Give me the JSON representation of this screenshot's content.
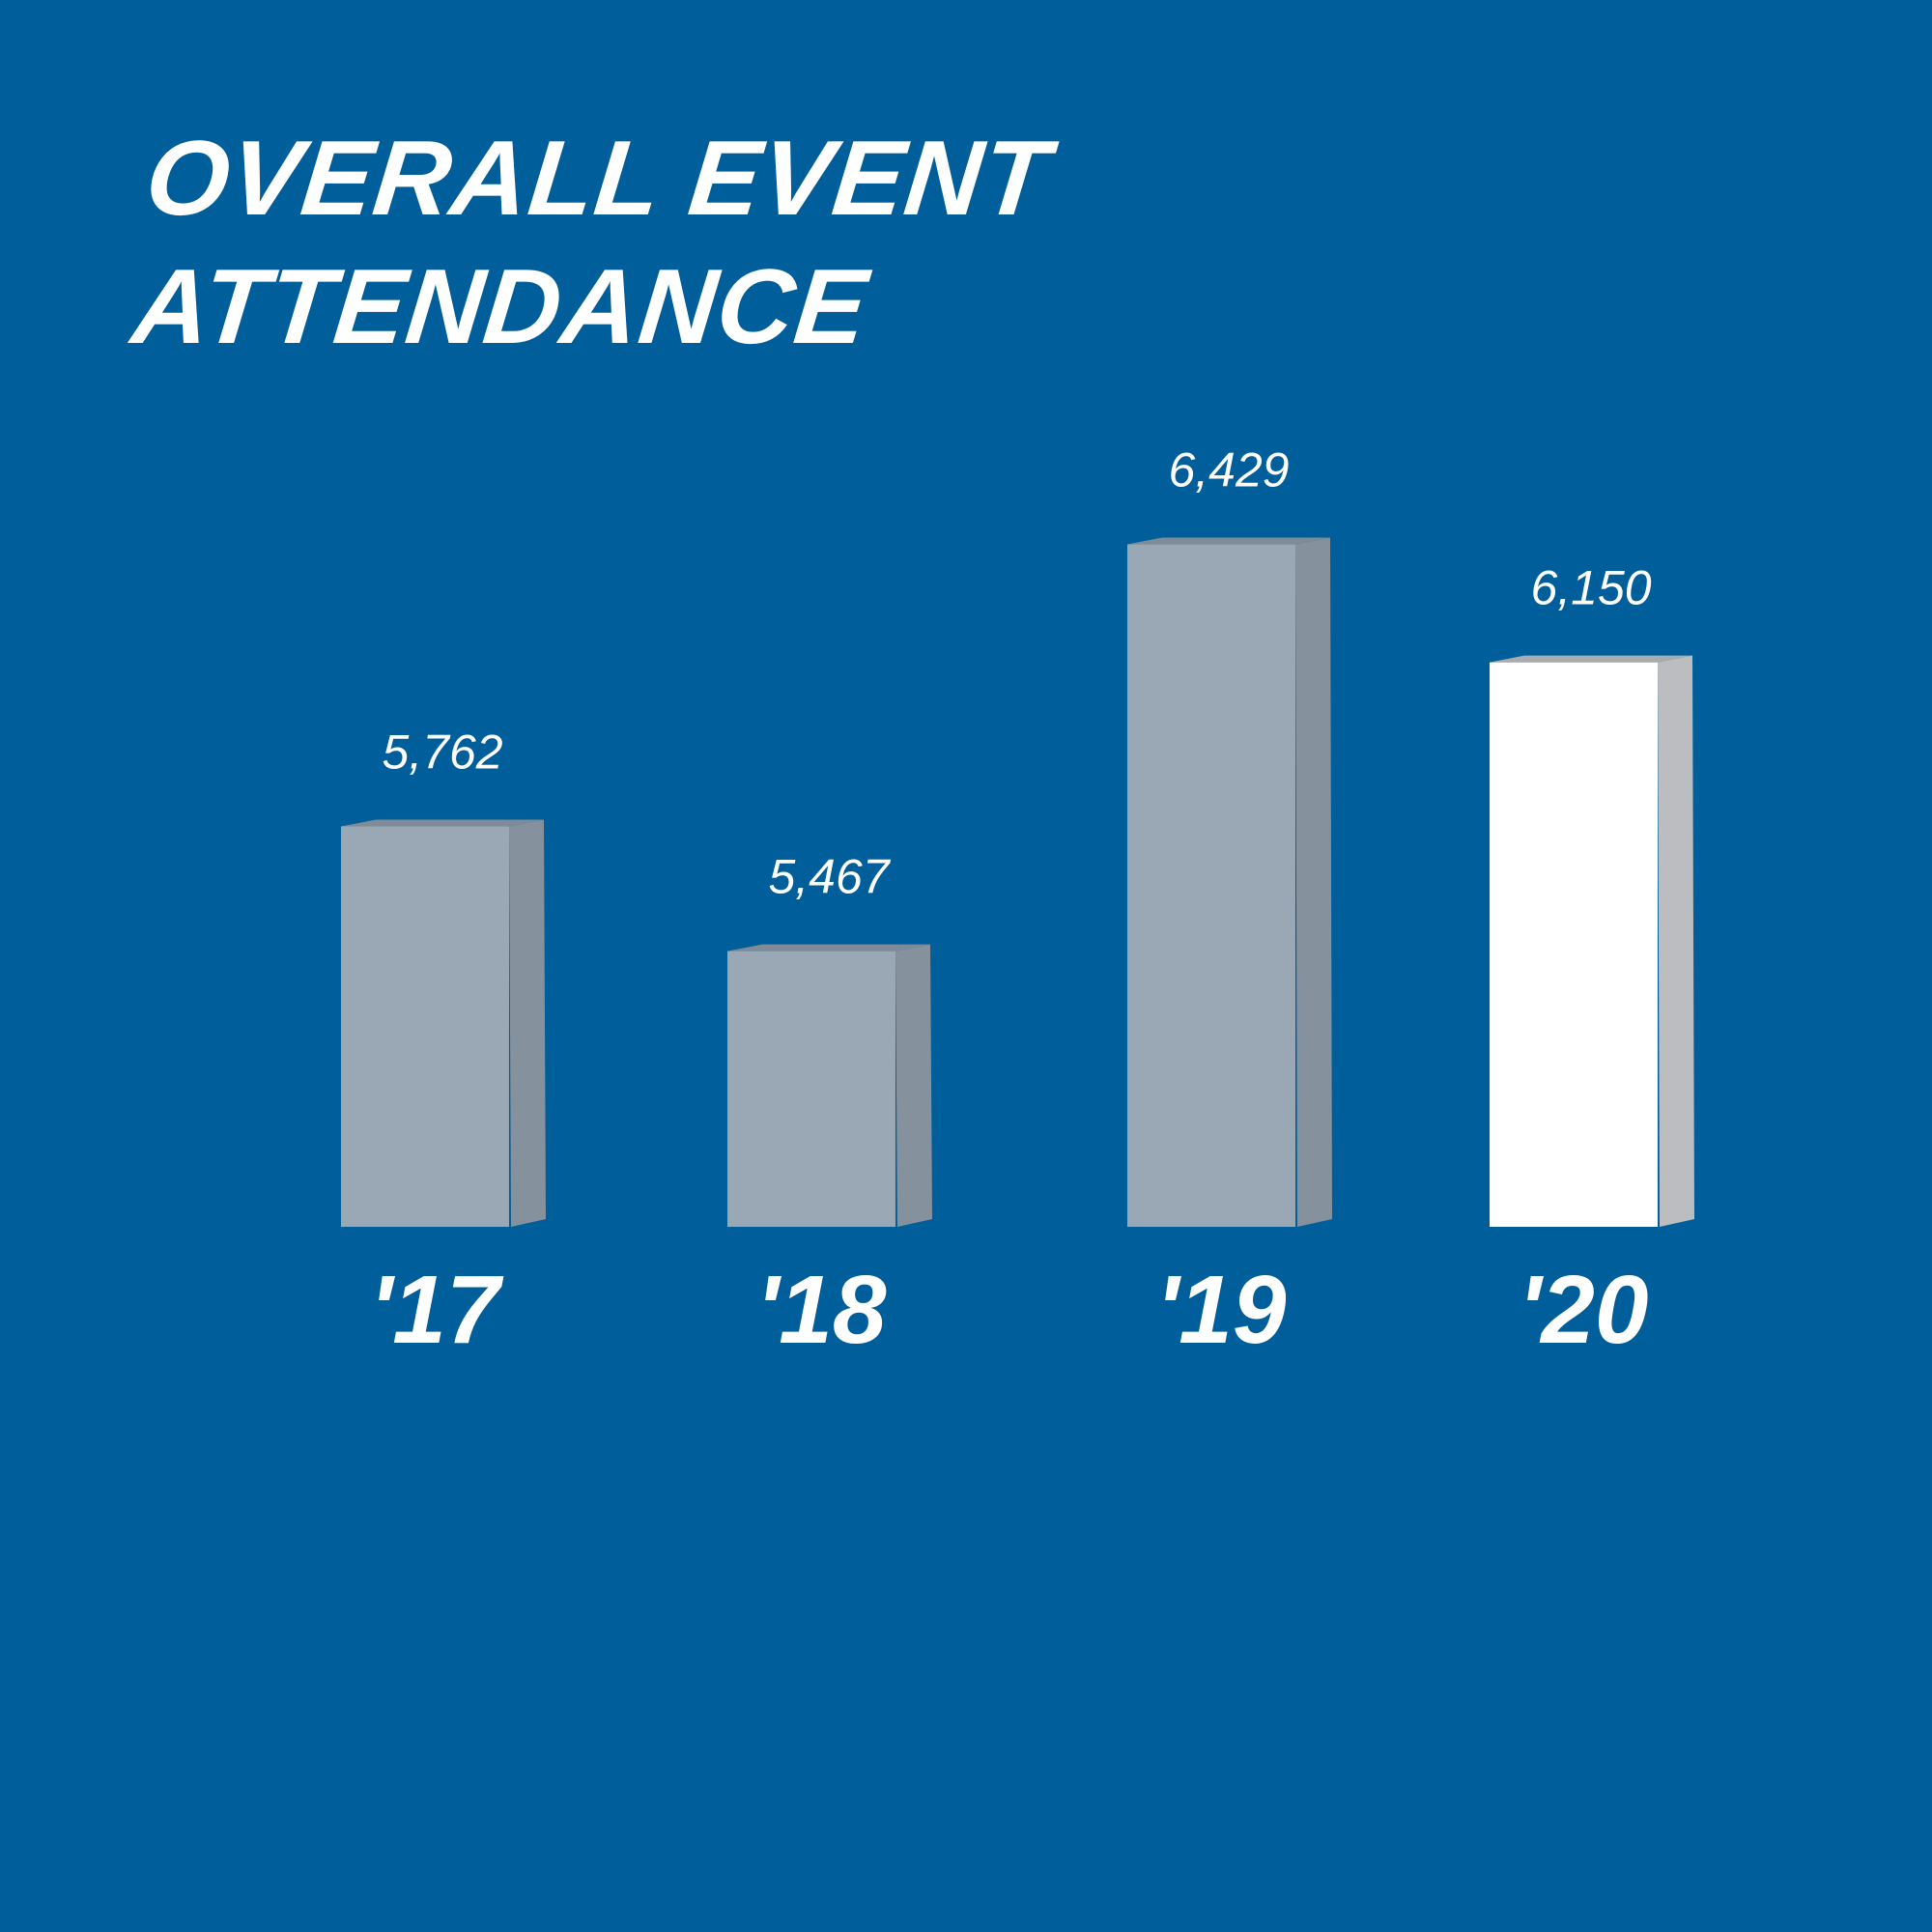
{
  "chart_data": {
    "type": "bar",
    "title": "OVERALL EVENT ATTENDANCE",
    "categories": [
      "'17",
      "'18",
      "'19",
      "'20"
    ],
    "values": [
      5762,
      5467,
      6429,
      6150
    ],
    "value_labels": [
      "5,762",
      "5,467",
      "6,429",
      "6,150"
    ],
    "xlabel": "",
    "ylabel": "",
    "grid": false,
    "style": "3d",
    "colors": {
      "background": "#005f9a",
      "bar_front": "#9aa7b4",
      "bar_side": "#85929e",
      "bar_top": "#7f8b96",
      "highlight_front": "#ffffff",
      "highlight_side": "#bcbdc0",
      "highlight_top": "#a9abae",
      "text": "#ffffff"
    },
    "highlighted_index": 3
  }
}
